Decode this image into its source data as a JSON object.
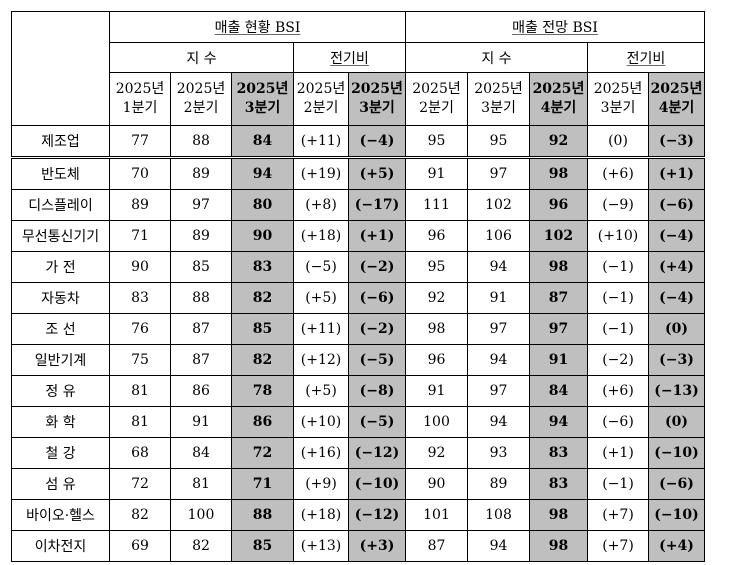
{
  "header": {
    "current_group": "매출 현황 BSI",
    "outlook_group": "매출 전망 BSI",
    "index_label": "지 수",
    "qoq_label": "전기비"
  },
  "current_quarters": [
    [
      "2025년",
      "1분기"
    ],
    [
      "2025년",
      "2분기"
    ],
    [
      "2025년",
      "3분기"
    ],
    [
      "2025년",
      "2분기"
    ],
    [
      "2025년",
      "3분기"
    ]
  ],
  "outlook_quarters": [
    [
      "2025년",
      "2분기"
    ],
    [
      "2025년",
      "3분기"
    ],
    [
      "2025년",
      "4분기"
    ],
    [
      "2025년",
      "3분기"
    ],
    [
      "2025년",
      "4분기"
    ]
  ],
  "rows": [
    {
      "label": "제조업",
      "v": [
        "77",
        "88",
        "84",
        "(+11)",
        "(−4)",
        "95",
        "95",
        "92",
        "(0)",
        "(−3)"
      ]
    },
    {
      "label": "반도체",
      "v": [
        "70",
        "89",
        "94",
        "(+19)",
        "(+5)",
        "91",
        "97",
        "98",
        "(+6)",
        "(+1)"
      ]
    },
    {
      "label": "디스플레이",
      "v": [
        "89",
        "97",
        "80",
        "(+8)",
        "(−17)",
        "111",
        "102",
        "96",
        "(−9)",
        "(−6)"
      ]
    },
    {
      "label": "무선통신기기",
      "v": [
        "71",
        "89",
        "90",
        "(+18)",
        "(+1)",
        "96",
        "106",
        "102",
        "(+10)",
        "(−4)"
      ]
    },
    {
      "label": "가 전",
      "v": [
        "90",
        "85",
        "83",
        "(−5)",
        "(−2)",
        "95",
        "94",
        "98",
        "(−1)",
        "(+4)"
      ]
    },
    {
      "label": "자동차",
      "v": [
        "83",
        "88",
        "82",
        "(+5)",
        "(−6)",
        "92",
        "91",
        "87",
        "(−1)",
        "(−4)"
      ]
    },
    {
      "label": "조 선",
      "v": [
        "76",
        "87",
        "85",
        "(+11)",
        "(−2)",
        "98",
        "97",
        "97",
        "(−1)",
        "(0)"
      ]
    },
    {
      "label": "일반기계",
      "v": [
        "75",
        "87",
        "82",
        "(+12)",
        "(−5)",
        "96",
        "94",
        "91",
        "(−2)",
        "(−3)"
      ]
    },
    {
      "label": "정 유",
      "v": [
        "81",
        "86",
        "78",
        "(+5)",
        "(−8)",
        "91",
        "97",
        "84",
        "(+6)",
        "(−13)"
      ]
    },
    {
      "label": "화 학",
      "v": [
        "81",
        "91",
        "86",
        "(+10)",
        "(−5)",
        "100",
        "94",
        "94",
        "(−6)",
        "(0)"
      ]
    },
    {
      "label": "철 강",
      "v": [
        "68",
        "84",
        "72",
        "(+16)",
        "(−12)",
        "92",
        "93",
        "83",
        "(+1)",
        "(−10)"
      ]
    },
    {
      "label": "섬 유",
      "v": [
        "72",
        "81",
        "71",
        "(+9)",
        "(−10)",
        "90",
        "89",
        "83",
        "(−1)",
        "(−6)"
      ]
    },
    {
      "label": "바이오·헬스",
      "v": [
        "82",
        "100",
        "88",
        "(+18)",
        "(−12)",
        "101",
        "108",
        "98",
        "(+7)",
        "(−10)"
      ]
    },
    {
      "label": "이차전지",
      "v": [
        "69",
        "82",
        "85",
        "(+13)",
        "(+3)",
        "87",
        "94",
        "98",
        "(+7)",
        "(+4)"
      ]
    }
  ],
  "colors": {
    "highlight": "#bfbfbf",
    "border": "#000000"
  }
}
